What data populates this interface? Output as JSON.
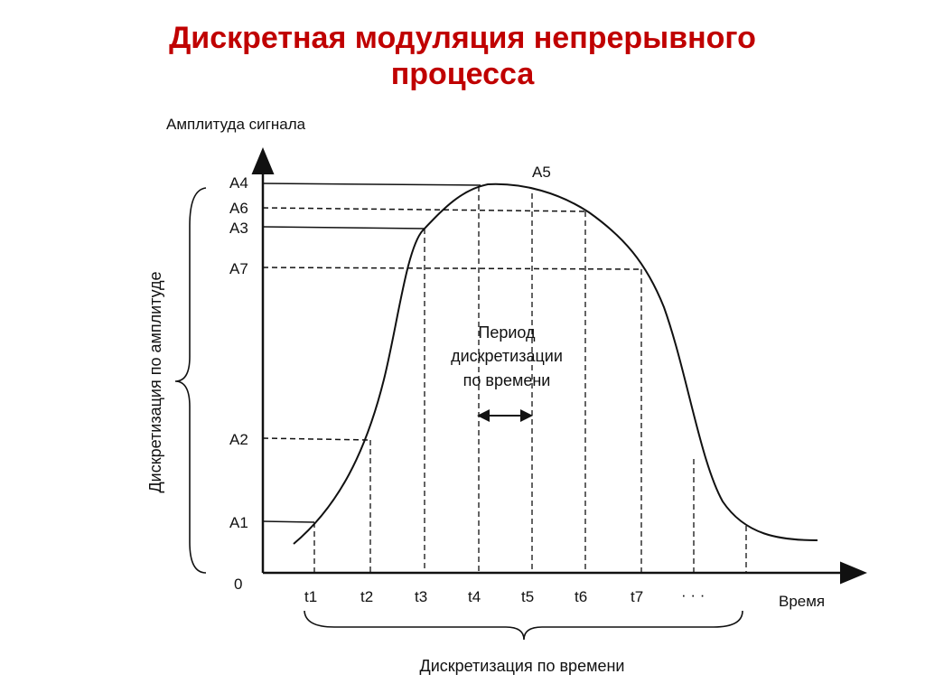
{
  "title": {
    "line1": "Дискретная модуляция непрерывного",
    "line2": "процесса"
  },
  "axes": {
    "y_title": "Амплитуда сигнала",
    "x_title": "Время",
    "origin": "0"
  },
  "amplitude_levels": [
    "A1",
    "A2",
    "A3",
    "A4",
    "A6",
    "A7"
  ],
  "peak_label": "A5",
  "time_ticks": [
    "t1",
    "t2",
    "t3",
    "t4",
    "t5",
    "t6",
    "t7",
    "· · ·"
  ],
  "period_label": {
    "line1": "Период",
    "line2": "дискретизации",
    "line3": "по времени"
  },
  "brace_labels": {
    "vertical": "Дискретизация по амплитуде",
    "horizontal": "Дискретизация по времени"
  },
  "colors": {
    "title": "#c00000",
    "ink": "#111111"
  }
}
